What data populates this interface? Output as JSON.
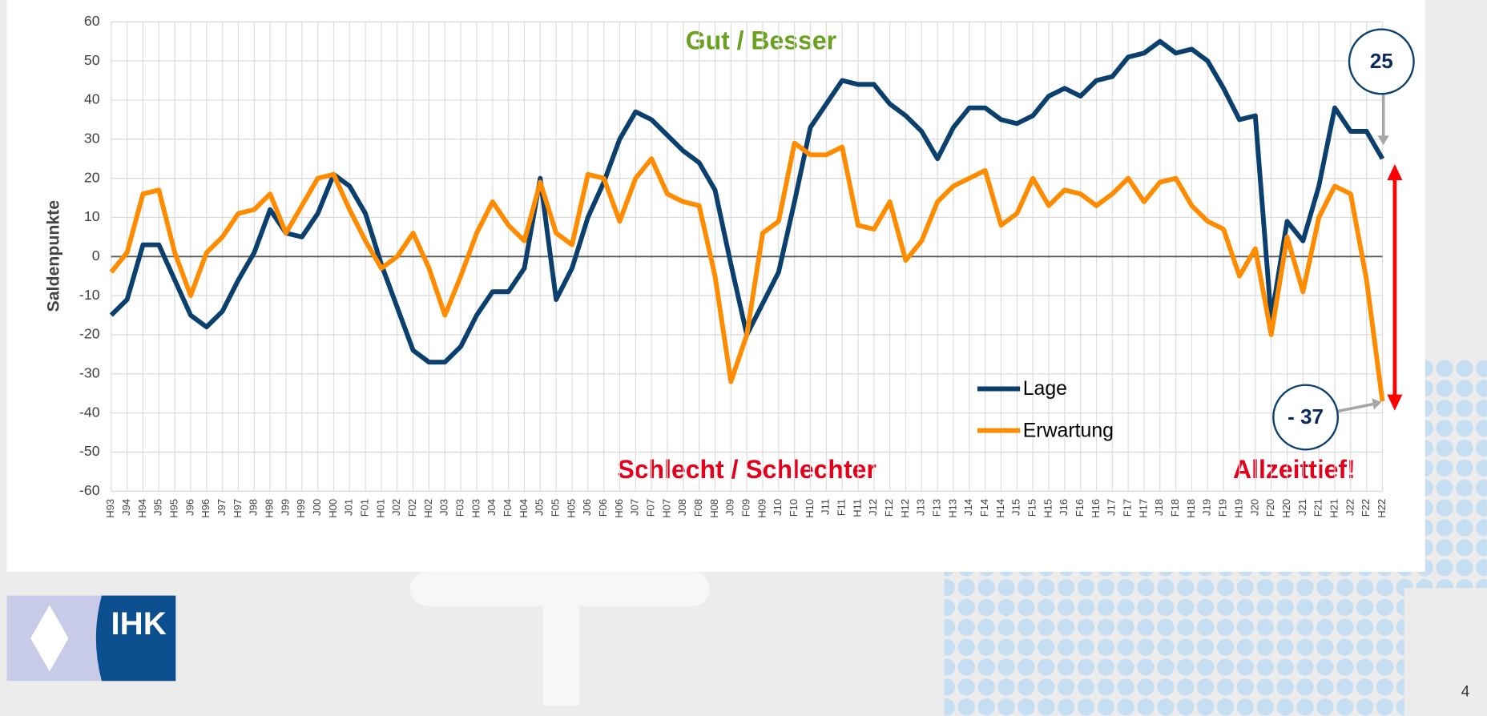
{
  "chart_data": {
    "type": "line",
    "y_label": "Saldenpunkte",
    "categories": [
      "H93",
      "J94",
      "H94",
      "J95",
      "H95",
      "J96",
      "H96",
      "J97",
      "H97",
      "J98",
      "H98",
      "J99",
      "H99",
      "J00",
      "H00",
      "J01",
      "F01",
      "H01",
      "J02",
      "F02",
      "H02",
      "J03",
      "F03",
      "H03",
      "J04",
      "F04",
      "H04",
      "J05",
      "F05",
      "H05",
      "J06",
      "F06",
      "H06",
      "J07",
      "F07",
      "H07",
      "J08",
      "F08",
      "H08",
      "J09",
      "F09",
      "H09",
      "J10",
      "F10",
      "H10",
      "J11",
      "F11",
      "H11",
      "J12",
      "F12",
      "H12",
      "J13",
      "F13",
      "H13",
      "J14",
      "F14",
      "H14",
      "J15",
      "F15",
      "H15",
      "J16",
      "F16",
      "H16",
      "J17",
      "F17",
      "H17",
      "J18",
      "F18",
      "H18",
      "J19",
      "F19",
      "H19",
      "J20",
      "F20",
      "H20",
      "J21",
      "F21",
      "H21",
      "J22",
      "F22",
      "H22"
    ],
    "series": [
      {
        "name": "Lage",
        "color": "#0b3f6e",
        "values": [
          -15,
          -11,
          3,
          3,
          -6,
          -15,
          -18,
          -14,
          -6,
          1,
          12,
          6,
          5,
          11,
          21,
          18,
          11,
          -2,
          -13,
          -24,
          -27,
          -27,
          -23,
          -15,
          -9,
          -9,
          -3,
          20,
          -11,
          -3,
          10,
          19,
          30,
          37,
          35,
          31,
          27,
          24,
          17,
          -2,
          -20,
          -12,
          -4,
          14,
          33,
          39,
          45,
          44,
          44,
          39,
          36,
          32,
          25,
          33,
          38,
          38,
          35,
          34,
          36,
          41,
          43,
          41,
          45,
          46,
          51,
          52,
          55,
          52,
          53,
          50,
          43,
          35,
          36,
          -16,
          9,
          4,
          18,
          38,
          32,
          32,
          25
        ]
      },
      {
        "name": "Erwartung",
        "color": "#ff8c00",
        "values": [
          -4,
          1,
          16,
          17,
          1,
          -10,
          1,
          5,
          11,
          12,
          16,
          6,
          13,
          20,
          21,
          12,
          4,
          -3,
          0,
          6,
          -3,
          -15,
          -5,
          6,
          14,
          8,
          4,
          19,
          6,
          3,
          21,
          20,
          9,
          20,
          25,
          16,
          14,
          13,
          -5,
          -32,
          -20,
          6,
          9,
          29,
          26,
          26,
          28,
          8,
          7,
          14,
          -1,
          4,
          14,
          18,
          20,
          22,
          8,
          11,
          20,
          13,
          17,
          16,
          13,
          16,
          20,
          14,
          19,
          20,
          13,
          9,
          7,
          -5,
          2,
          -20,
          5,
          -9,
          10,
          18,
          16,
          -6,
          -37
        ]
      }
    ],
    "ylim": [
      -60,
      60
    ],
    "yticks": [
      -60,
      -50,
      -40,
      -30,
      -20,
      -10,
      0,
      10,
      20,
      30,
      40,
      50,
      60
    ],
    "grid": true,
    "legend": "lower right",
    "annotations": [
      "Gut / Besser",
      "Schlecht / Schlechter",
      "Allzeittief!",
      "25",
      "- 37"
    ]
  },
  "logo": "IHK",
  "page_number": "4"
}
